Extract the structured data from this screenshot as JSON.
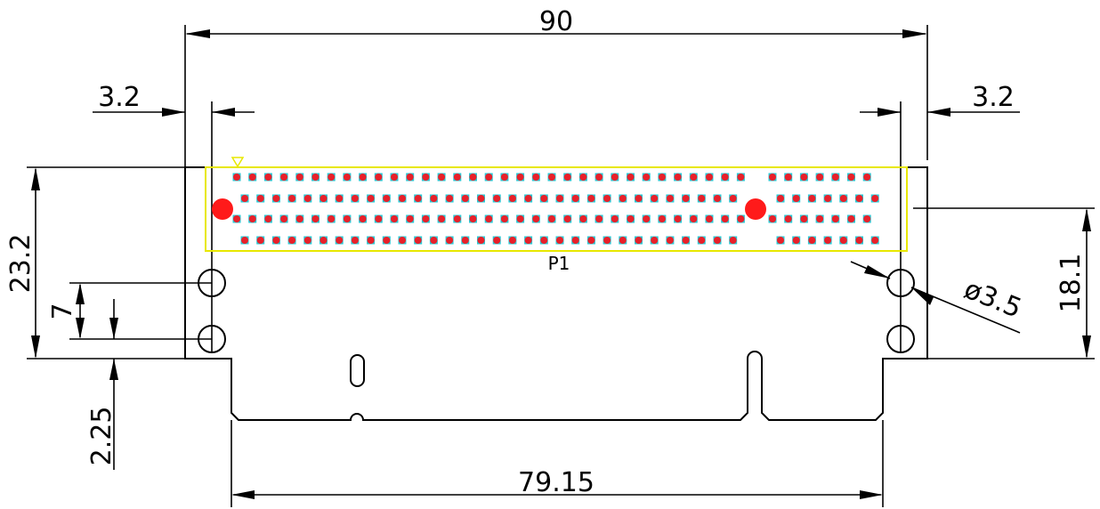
{
  "dimensions": {
    "overall_width": "90",
    "left_offset": "3.2",
    "right_offset": "3.2",
    "overall_height": "23.2",
    "hole_spacing": "7",
    "bottom_offset": "2.25",
    "hole_diameter": "ø3.5",
    "connector_height": "18.1",
    "bottom_width": "79.15"
  },
  "connector": {
    "ref": "P1",
    "rows": 4,
    "left_columns": 33,
    "right_columns": 7,
    "pin_color": "#e8202a",
    "pad_color": "#29c8d4",
    "outline_color": "#e8e800",
    "key_marker_color": "#ff1a1a"
  },
  "colors": {
    "line": "#000000",
    "background": "#ffffff"
  }
}
